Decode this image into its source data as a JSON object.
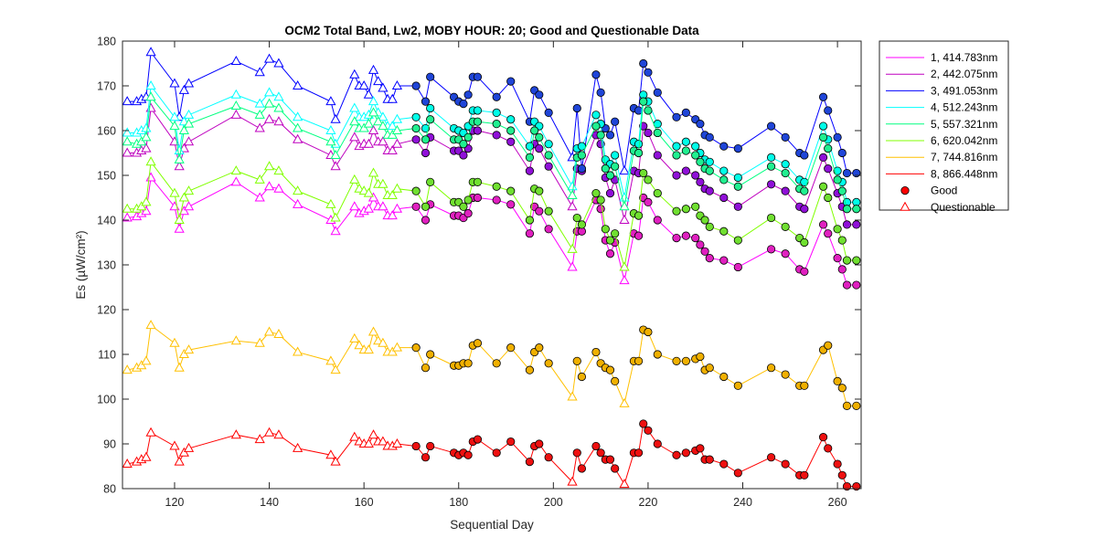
{
  "chart_data": {
    "type": "line",
    "title": "OCM2 Total Band,  Lw2, MOBY HOUR: 20;  Good and Questionable Data",
    "xlabel": "Sequential Day",
    "ylabel": "Es (µW/cm²)",
    "xlim": [
      109,
      265
    ],
    "ylim": [
      80,
      180
    ],
    "xticks": [
      120,
      140,
      160,
      180,
      200,
      220,
      240,
      260
    ],
    "yticks": [
      80,
      90,
      100,
      110,
      120,
      130,
      140,
      150,
      160,
      170,
      180
    ],
    "grid": false,
    "legend_position": "outside-top-right",
    "marker_legend": [
      {
        "label": "Good",
        "marker": "circle",
        "color": "#ff0000"
      },
      {
        "label": "Questionable",
        "marker": "triangle",
        "color": "#ff0000"
      }
    ],
    "questionable_x": [
      110,
      112,
      113,
      114,
      115,
      120,
      121,
      122,
      123,
      133,
      138,
      140,
      142,
      146,
      153,
      154,
      158,
      159,
      160,
      161,
      162,
      163,
      164,
      165,
      166,
      167,
      204,
      215
    ],
    "good_x": [
      171,
      173,
      174,
      179,
      180,
      181,
      182,
      183,
      184,
      188,
      191,
      195,
      196,
      197,
      199,
      205,
      206,
      209,
      210,
      211,
      212,
      213,
      217,
      218,
      219,
      220,
      222,
      226,
      228,
      230,
      231,
      232,
      233,
      236,
      239,
      246,
      249,
      252,
      253,
      257,
      258,
      260,
      261,
      262,
      264
    ],
    "x": [
      110,
      112,
      113,
      114,
      115,
      120,
      121,
      122,
      123,
      133,
      138,
      140,
      142,
      146,
      153,
      154,
      158,
      159,
      160,
      161,
      162,
      163,
      164,
      165,
      166,
      167,
      171,
      173,
      174,
      179,
      180,
      181,
      182,
      183,
      184,
      188,
      191,
      195,
      196,
      197,
      199,
      204,
      205,
      206,
      209,
      210,
      211,
      212,
      213,
      215,
      217,
      218,
      219,
      220,
      222,
      226,
      228,
      230,
      231,
      232,
      233,
      236,
      239,
      246,
      249,
      252,
      253,
      257,
      258,
      260,
      261,
      262,
      264
    ],
    "series": [
      {
        "name": "1, 414.783nm",
        "color": "#ff00ff",
        "good_color": "#e020c0",
        "values": [
          140.5,
          140.8,
          141.5,
          142,
          149.5,
          143,
          138,
          142,
          143,
          148.5,
          145,
          147.5,
          147,
          143.5,
          140,
          137.5,
          143,
          141.5,
          142,
          142.5,
          145,
          143,
          143,
          141,
          141,
          142.5,
          143,
          140,
          143.5,
          141,
          141,
          140.5,
          141.5,
          145,
          145,
          144.5,
          143.5,
          137,
          143,
          142,
          138,
          129.5,
          137.5,
          137.5,
          144.5,
          142.5,
          135.5,
          132.5,
          135,
          126.5,
          137,
          136.5,
          145,
          144,
          140,
          136,
          136.5,
          136,
          134.5,
          133,
          131.5,
          131,
          129.5,
          133.5,
          132.5,
          129,
          128.5,
          139,
          137,
          131.5,
          129,
          125.5,
          125.5
        ]
      },
      {
        "name": "2, 442.075nm",
        "color": "#bf00bf",
        "good_color": "#9010d8",
        "values": [
          155,
          155,
          155.5,
          156,
          165,
          157.5,
          152,
          156,
          157.5,
          163.5,
          160.5,
          162.5,
          162,
          158,
          154.5,
          152,
          158.5,
          156.5,
          157,
          157,
          160,
          157.5,
          157.5,
          155.5,
          155.5,
          157,
          158,
          155,
          158.5,
          155.5,
          155.5,
          154.5,
          156,
          160,
          160,
          159,
          157.5,
          151,
          157,
          156,
          152,
          143,
          151.5,
          151,
          159,
          157,
          149.5,
          146,
          149,
          140,
          151,
          150.5,
          161,
          159.5,
          154.5,
          150,
          151,
          150,
          148.5,
          147,
          146.5,
          145,
          143,
          148,
          146.5,
          143,
          142.5,
          154,
          151.5,
          146,
          143,
          139,
          139
        ]
      },
      {
        "name": "3, 491.053nm",
        "color": "#0000ff",
        "good_color": "#1f45d8",
        "values": [
          166.5,
          166.5,
          167,
          167.5,
          177.5,
          170.5,
          163,
          169,
          170.5,
          175.5,
          173,
          176,
          175,
          170,
          166.5,
          162.5,
          172.5,
          170,
          170,
          168,
          173.5,
          171,
          169.5,
          167,
          167,
          170,
          170,
          166.5,
          172,
          167.5,
          166.5,
          166,
          168,
          172,
          172,
          167.5,
          171,
          162,
          169,
          168,
          164,
          154,
          165,
          151.5,
          172.5,
          168.5,
          160.5,
          159,
          162,
          151,
          165,
          164.5,
          175,
          173,
          168.5,
          163,
          164,
          162.5,
          161.5,
          159,
          158.5,
          156.5,
          156,
          161,
          158.5,
          155,
          154.5,
          167.5,
          164.5,
          158.5,
          155,
          150.5,
          150.5
        ]
      },
      {
        "name": "4, 512.243nm",
        "color": "#00ffff",
        "good_color": "#00ffe8",
        "values": [
          159.5,
          159.5,
          160,
          160.5,
          170,
          163,
          155.5,
          162,
          163.5,
          168,
          166,
          168.5,
          167.5,
          163,
          160,
          157,
          165,
          163,
          163,
          163.5,
          166.5,
          164,
          163,
          161,
          161,
          162.5,
          163,
          160.5,
          165,
          160.5,
          160,
          159.5,
          161,
          164.5,
          164.5,
          164,
          162.5,
          156.5,
          162,
          161,
          157,
          147.5,
          156,
          156.5,
          163.5,
          161.5,
          153.5,
          152.5,
          154.5,
          145,
          157.5,
          157,
          168,
          166.5,
          161.5,
          156.5,
          157.5,
          156.5,
          155,
          153.5,
          153,
          151,
          149.5,
          154,
          152.5,
          149,
          148.5,
          161,
          158,
          151,
          148.5,
          144,
          144
        ]
      },
      {
        "name": "5, 557.321nm",
        "color": "#00ff80",
        "good_color": "#20f090",
        "values": [
          157.5,
          157,
          157.5,
          158.5,
          167.5,
          161,
          153.5,
          160,
          161.5,
          165.5,
          163.5,
          166,
          165,
          160.5,
          157.5,
          154.5,
          162,
          160.5,
          160.5,
          161.5,
          164,
          162,
          161,
          159,
          159,
          160,
          160.5,
          158,
          162.5,
          158,
          158,
          157,
          158.5,
          162,
          162,
          161.5,
          160,
          154,
          160,
          158.5,
          154.5,
          145.5,
          154,
          154.5,
          161,
          159,
          151.5,
          150,
          152,
          143,
          155.5,
          155,
          166.5,
          164.5,
          159.5,
          154.5,
          155.5,
          154.5,
          153,
          151.5,
          151,
          149,
          147.5,
          152,
          150.5,
          147,
          146.5,
          158.5,
          156,
          149,
          146.5,
          142.5,
          142.5
        ]
      },
      {
        "name": "6, 620.042nm",
        "color": "#80ff00",
        "good_color": "#70e030",
        "values": [
          142.5,
          142.5,
          143,
          144,
          153,
          146,
          140,
          145,
          146.5,
          151,
          149,
          152,
          151,
          146.5,
          143.5,
          140.5,
          149,
          147,
          146.5,
          146,
          150.5,
          148,
          148,
          145.5,
          145.5,
          147,
          146.5,
          143,
          148.5,
          144,
          144,
          143,
          144.5,
          148.5,
          148.5,
          147.5,
          146.5,
          140,
          147,
          146.5,
          142,
          133.5,
          140.5,
          139,
          146,
          144.5,
          138,
          135.5,
          137,
          129.5,
          141.5,
          141,
          150.5,
          149,
          146,
          142,
          142.5,
          143,
          141,
          140,
          138.5,
          137.5,
          135.5,
          140.5,
          138.5,
          136,
          135,
          147.5,
          145,
          138,
          135.5,
          131,
          131
        ]
      },
      {
        "name": "7, 744.816nm",
        "color": "#ffc000",
        "good_color": "#f0b000",
        "values": [
          106.5,
          107,
          107.5,
          108.5,
          116.5,
          112.5,
          107,
          110,
          111,
          113,
          112.5,
          115,
          114.5,
          110.5,
          108.5,
          106.5,
          113.5,
          112,
          111,
          111,
          115,
          113,
          112.5,
          110.5,
          110.5,
          111.5,
          111.5,
          107,
          110,
          107.5,
          107.5,
          108,
          108,
          112,
          112.5,
          108,
          111.5,
          106.5,
          110.5,
          111.5,
          108,
          100.5,
          108.5,
          105,
          110.5,
          108,
          107,
          106.5,
          104,
          99,
          108.5,
          108.5,
          115.5,
          115,
          110,
          108.5,
          108.5,
          109,
          109.5,
          106.5,
          107,
          105,
          103,
          107,
          105.5,
          103,
          103,
          111,
          112,
          104,
          102.5,
          98.5,
          98.5
        ]
      },
      {
        "name": "8, 866.448nm",
        "color": "#ff0000",
        "good_color": "#ee1010",
        "values": [
          85.5,
          86,
          86.5,
          87,
          92.5,
          89.5,
          86,
          88,
          89,
          92,
          91,
          92.5,
          92,
          89,
          87.5,
          86,
          91.5,
          90.5,
          90,
          90,
          92,
          90.5,
          90.5,
          89.5,
          89.5,
          90,
          89.5,
          87,
          89.5,
          88,
          87.5,
          88,
          87.5,
          90.5,
          91,
          88,
          90.5,
          86,
          89.5,
          90,
          87,
          81.5,
          88,
          84.5,
          89.5,
          88,
          86.5,
          86.5,
          84.5,
          81,
          88,
          88,
          94.5,
          93,
          90,
          87.5,
          88,
          88.5,
          89,
          86.5,
          86.5,
          85.5,
          83.5,
          87,
          85.5,
          83,
          83,
          91.5,
          89,
          85.5,
          83,
          80.5,
          80.5
        ]
      }
    ]
  }
}
